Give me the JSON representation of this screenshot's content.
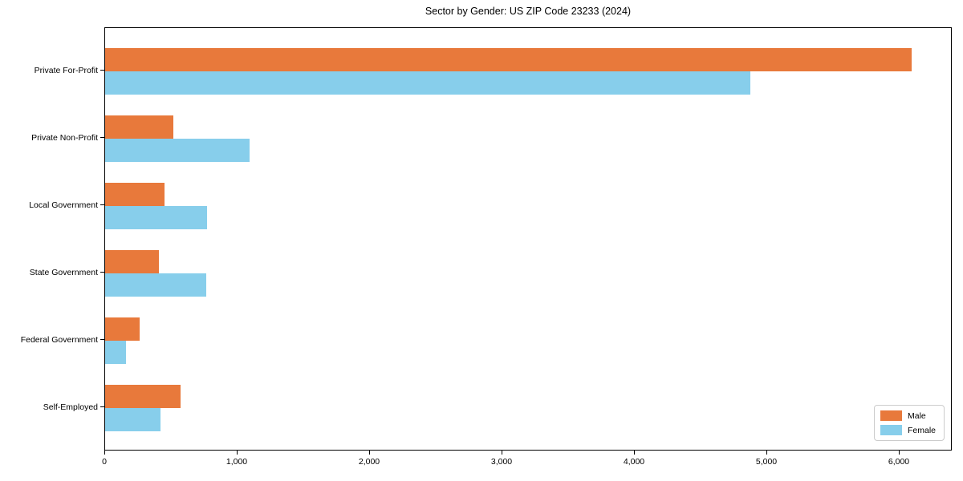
{
  "chart_data": {
    "type": "bar",
    "orientation": "horizontal",
    "title": "Sector by Gender: US ZIP Code 23233 (2024)",
    "categories": [
      "Private For-Profit",
      "Private Non-Profit",
      "Local Government",
      "State Government",
      "Federal Government",
      "Self-Employed"
    ],
    "series": [
      {
        "name": "Male",
        "color": "#E8793B",
        "values": [
          6090,
          515,
          450,
          405,
          260,
          570
        ]
      },
      {
        "name": "Female",
        "color": "#87CEEB",
        "values": [
          4870,
          1090,
          770,
          765,
          160,
          420
        ]
      }
    ],
    "xlabel": "",
    "ylabel": "",
    "xlim": [
      0,
      6400
    ],
    "x_ticks": [
      0,
      1000,
      2000,
      3000,
      4000,
      5000,
      6000
    ],
    "x_tick_labels": [
      "0",
      "1,000",
      "2,000",
      "3,000",
      "4,000",
      "5,000",
      "6,000"
    ],
    "grid": false,
    "legend_position": "lower-right",
    "colors": {
      "axis": "#000000",
      "legend_border": "#cccccc",
      "background": "#ffffff"
    }
  }
}
